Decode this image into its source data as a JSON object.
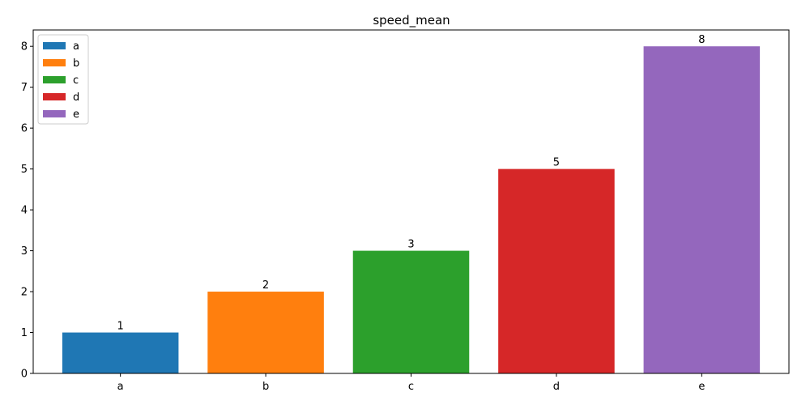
{
  "chart_data": {
    "type": "bar",
    "title": "speed_mean",
    "xlabel": "",
    "ylabel": "",
    "categories": [
      "a",
      "b",
      "c",
      "d",
      "e"
    ],
    "values": [
      1,
      2,
      3,
      5,
      8
    ],
    "colors": [
      "#1f77b4",
      "#ff7f0e",
      "#2ca02c",
      "#d62728",
      "#9467bd"
    ],
    "ylim": [
      0,
      8.4
    ],
    "yticks": [
      0,
      1,
      2,
      3,
      4,
      5,
      6,
      7,
      8
    ],
    "grid": false,
    "legend": {
      "position": "top-left",
      "entries": [
        "a",
        "b",
        "c",
        "d",
        "e"
      ]
    },
    "data_labels": [
      "1",
      "2",
      "3",
      "5",
      "8"
    ]
  }
}
